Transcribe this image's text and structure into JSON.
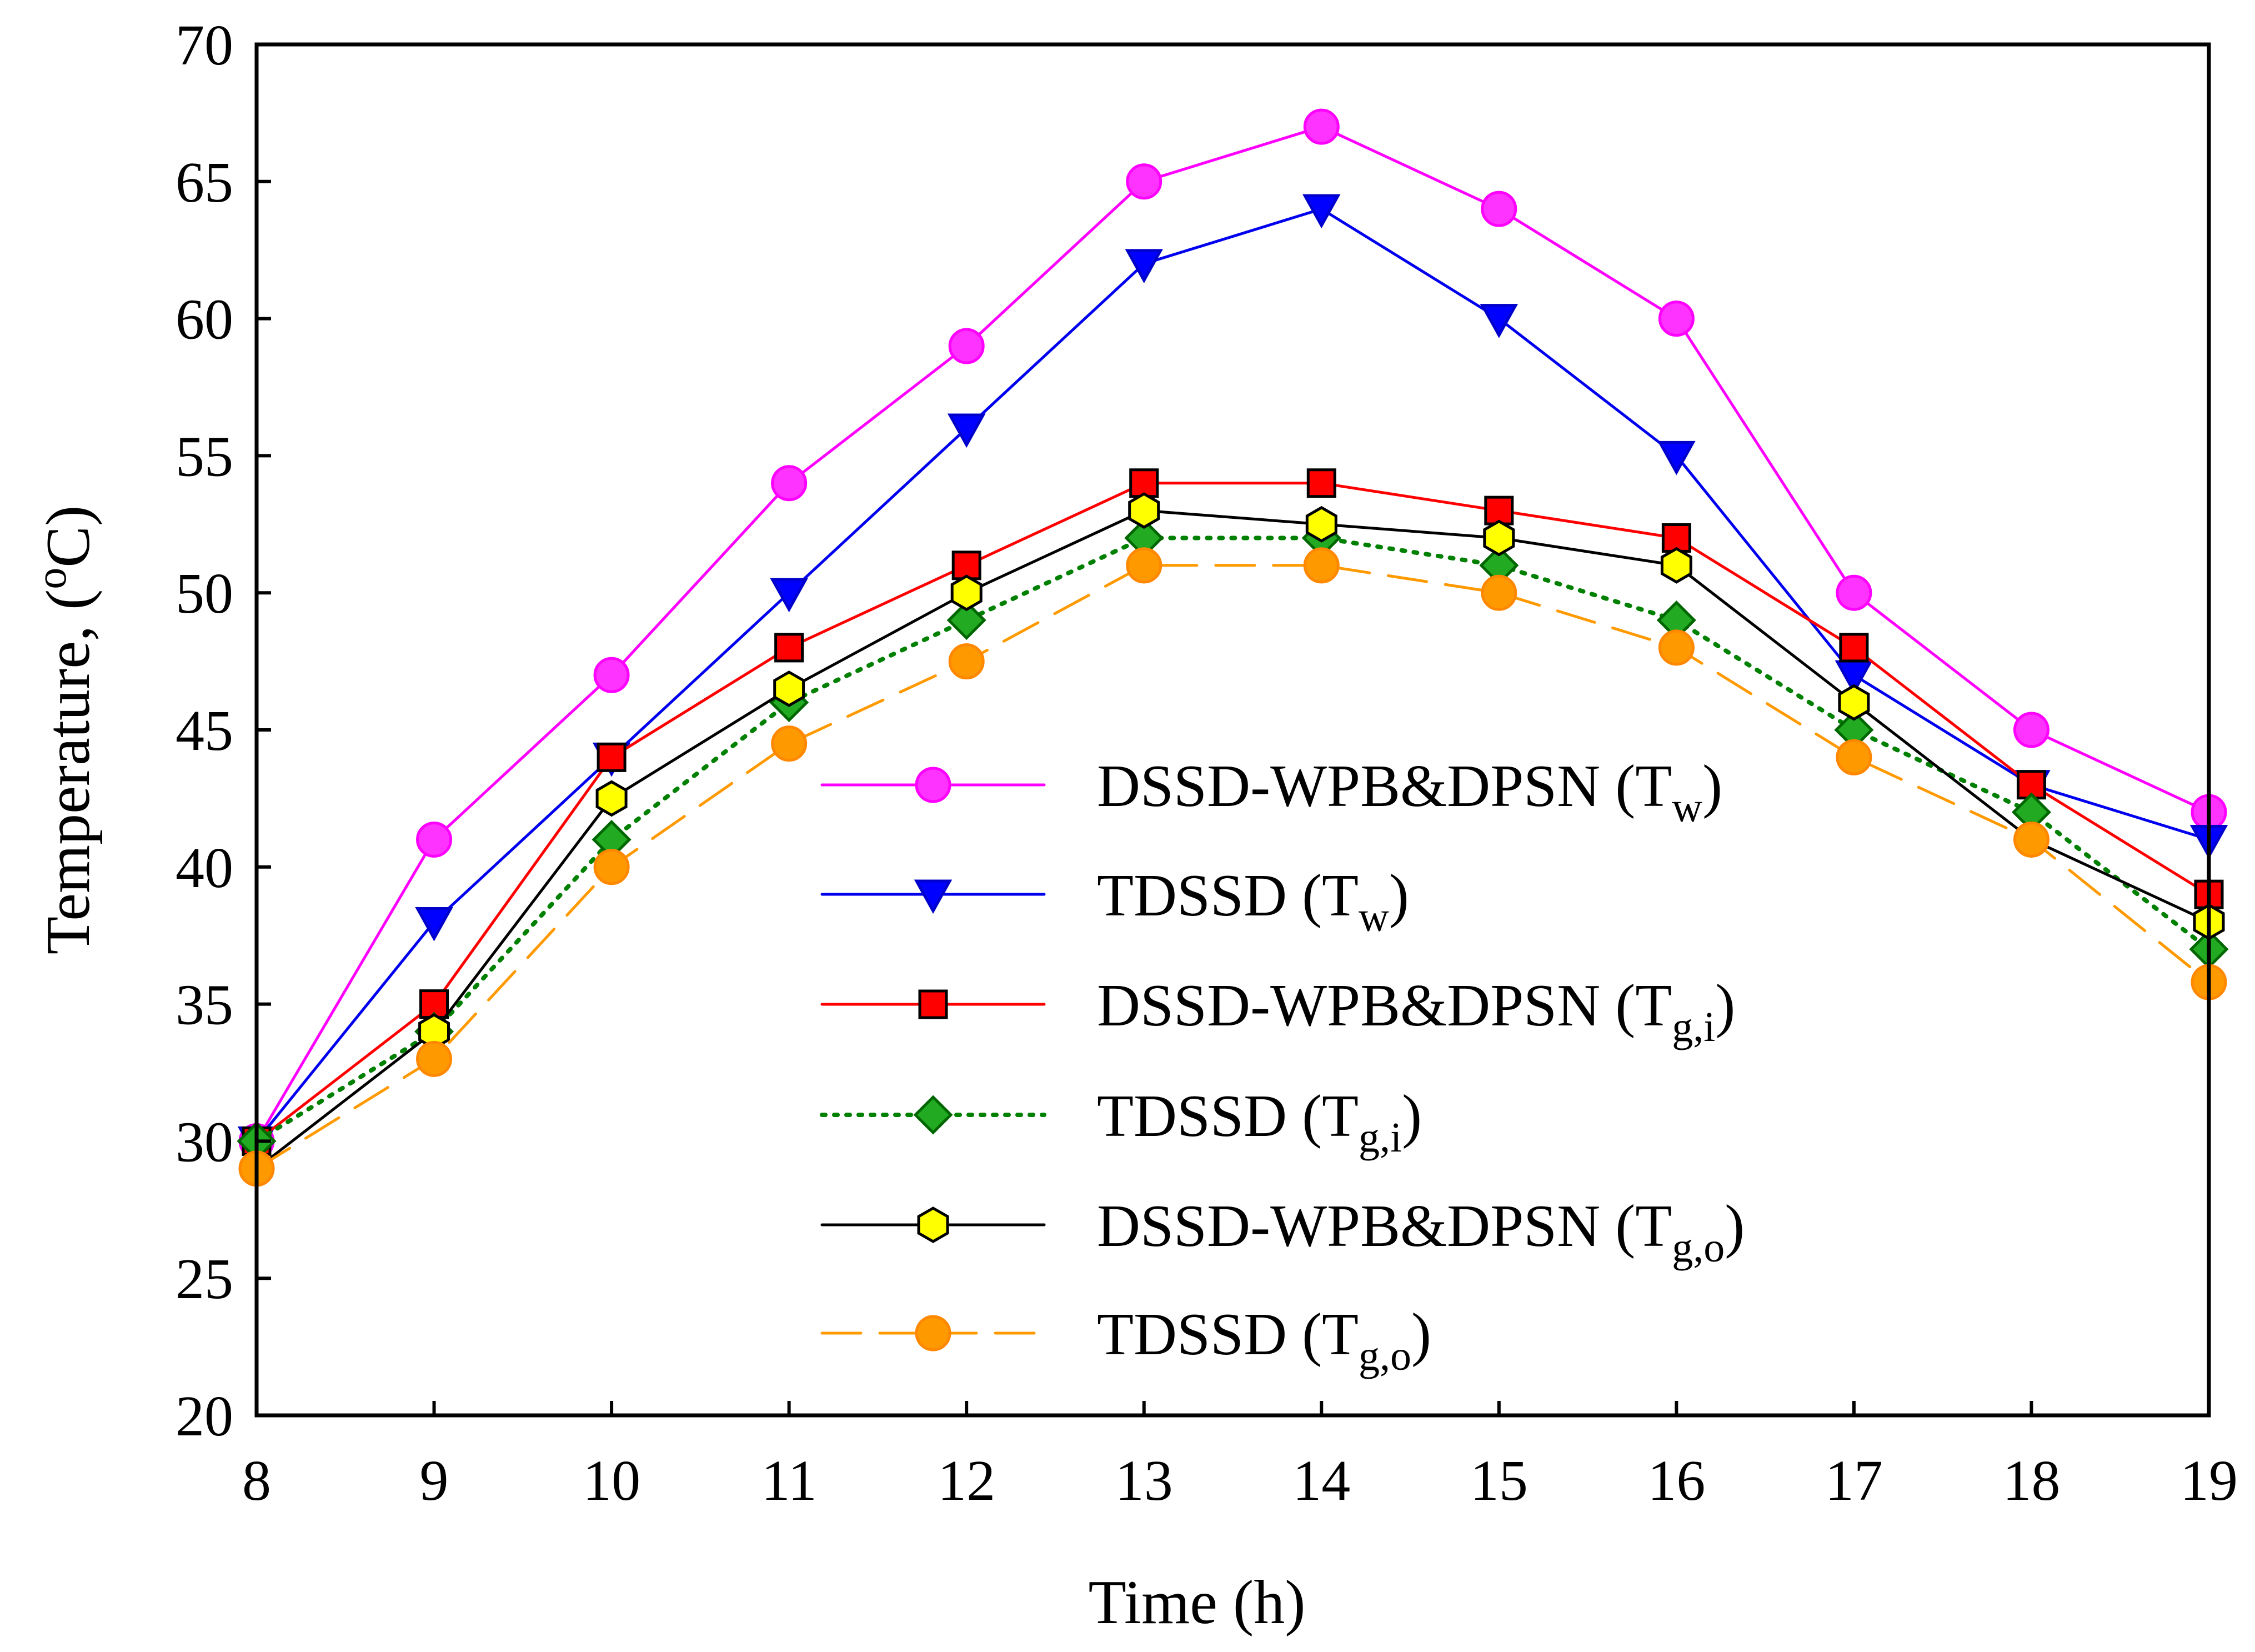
{
  "chart_data": {
    "type": "line",
    "title": "",
    "xlabel": "Time (h)",
    "ylabel": {
      "prefix": "Temperature, (",
      "sup": "o",
      "suffix": "C)"
    },
    "xlim": [
      8,
      19
    ],
    "ylim": [
      20,
      70
    ],
    "x": [
      8,
      9,
      10,
      11,
      12,
      13,
      14,
      15,
      16,
      17,
      18,
      19
    ],
    "x_ticks": [
      "8",
      "9",
      "10",
      "11",
      "12",
      "13",
      "14",
      "15",
      "16",
      "17",
      "18",
      "19"
    ],
    "y_ticks": [
      "20",
      "25",
      "30",
      "35",
      "40",
      "45",
      "50",
      "55",
      "60",
      "65",
      "70"
    ],
    "grid": false,
    "legend_position": "center",
    "series": [
      {
        "name": "DSSD-WPB&DPSN (Tw)",
        "label_base": "DSSD-WPB&DPSN (T",
        "label_sub": "w",
        "label_end": ")",
        "values": [
          30,
          41,
          47,
          54,
          59,
          65,
          67,
          64,
          60,
          50,
          45,
          42
        ],
        "marker": "circle",
        "line_color": "#ff00ff",
        "marker_fill": "#ff33ff",
        "marker_stroke": "#ff00ff",
        "dash": "solid"
      },
      {
        "name": "TDSSD (Tw)",
        "label_base": "TDSSD (T",
        "label_sub": "w",
        "label_end": ")",
        "values": [
          30,
          38,
          44,
          50,
          56,
          62,
          64,
          60,
          55,
          47,
          43,
          41
        ],
        "marker": "triangle-down",
        "line_color": "#0000ee",
        "marker_fill": "#0000ff",
        "marker_stroke": "#0000cc",
        "dash": "solid"
      },
      {
        "name": "DSSD-WPB&DPSN (Tg,i)",
        "label_base": "DSSD-WPB&DPSN (T",
        "label_sub": "g,i",
        "label_end": ")",
        "values": [
          30,
          35,
          44,
          48,
          51,
          54,
          54,
          53,
          52,
          48,
          43,
          39
        ],
        "marker": "square",
        "line_color": "#ff0000",
        "marker_fill": "#ff0000",
        "marker_stroke": "#000000",
        "dash": "solid"
      },
      {
        "name": "TDSSD (Tg,i)",
        "label_base": "TDSSD (T",
        "label_sub": "g,i",
        "label_end": ")",
        "values": [
          30,
          34,
          41,
          46,
          49,
          52,
          52,
          51,
          49,
          45,
          42,
          37
        ],
        "marker": "diamond",
        "line_color": "#008000",
        "marker_fill": "#22aa22",
        "marker_stroke": "#006600",
        "dash": "dotted"
      },
      {
        "name": "DSSD-WPB&DPSN (Tg,o)",
        "label_base": "DSSD-WPB&DPSN (T",
        "label_sub": "g,o",
        "label_end": ")",
        "values": [
          29,
          34,
          42.5,
          46.5,
          50,
          53,
          52.5,
          52,
          51,
          46,
          41,
          38
        ],
        "marker": "hexagon",
        "line_color": "#000000",
        "marker_fill": "#ffff00",
        "marker_stroke": "#000000",
        "dash": "solid"
      },
      {
        "name": "TDSSD (Tg,o)",
        "label_base": "TDSSD (T",
        "label_sub": "g,o",
        "label_end": ")",
        "values": [
          29,
          33,
          40,
          44.5,
          47.5,
          51,
          51,
          50,
          48,
          44,
          41,
          35.8
        ],
        "marker": "circle",
        "line_color": "#ff9900",
        "marker_fill": "#ff9900",
        "marker_stroke": "#ff8800",
        "dash": "dashed"
      }
    ]
  }
}
